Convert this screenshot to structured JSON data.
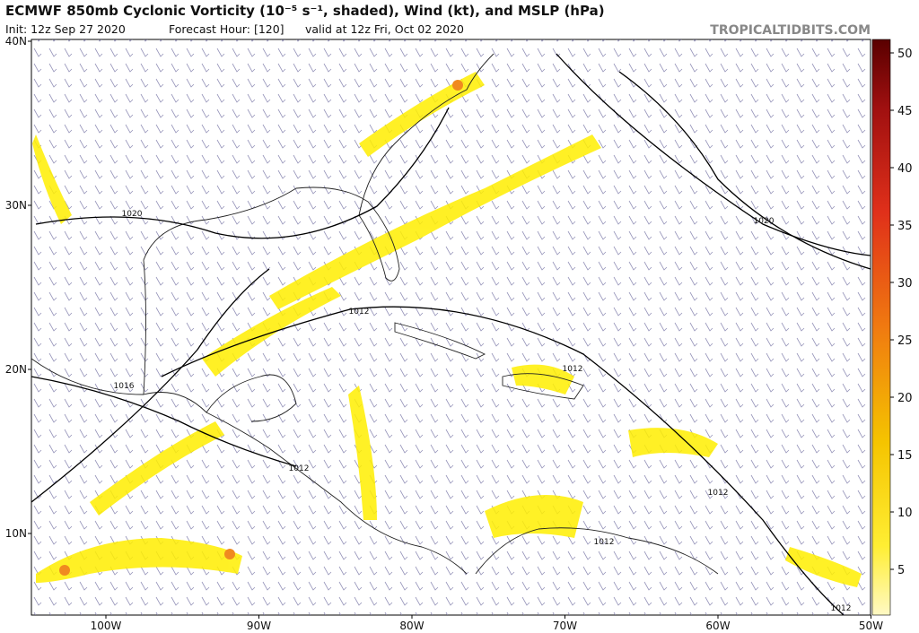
{
  "header": {
    "title": "ECMWF 850mb Cyclonic Vorticity (10⁻⁵ s⁻¹, shaded), Wind (kt), and MSLP (hPa)",
    "init": "Init: 12z Sep 27 2020",
    "forecast_hour": "Forecast Hour: [120]",
    "valid": "valid at 12z Fri, Oct 02 2020",
    "source": "TROPICALTIDBITS.COM"
  },
  "map": {
    "lat_ticks": [
      {
        "value": 40,
        "label": "40N"
      },
      {
        "value": 30,
        "label": "30N"
      },
      {
        "value": 20,
        "label": "20N"
      },
      {
        "value": 10,
        "label": "10N"
      }
    ],
    "lon_ticks": [
      {
        "value": -100,
        "label": "100W"
      },
      {
        "value": -90,
        "label": "90W"
      },
      {
        "value": -80,
        "label": "80W"
      },
      {
        "value": -70,
        "label": "70W"
      },
      {
        "value": -60,
        "label": "60W"
      },
      {
        "value": -50,
        "label": "50W"
      }
    ],
    "isobar_labels": [
      "1020",
      "1020",
      "1012",
      "1016",
      "1012",
      "1012",
      "1012",
      "1012",
      "1012"
    ]
  },
  "colorbar": {
    "ticks": [
      5,
      10,
      15,
      20,
      25,
      30,
      35,
      40,
      45,
      50
    ]
  }
}
